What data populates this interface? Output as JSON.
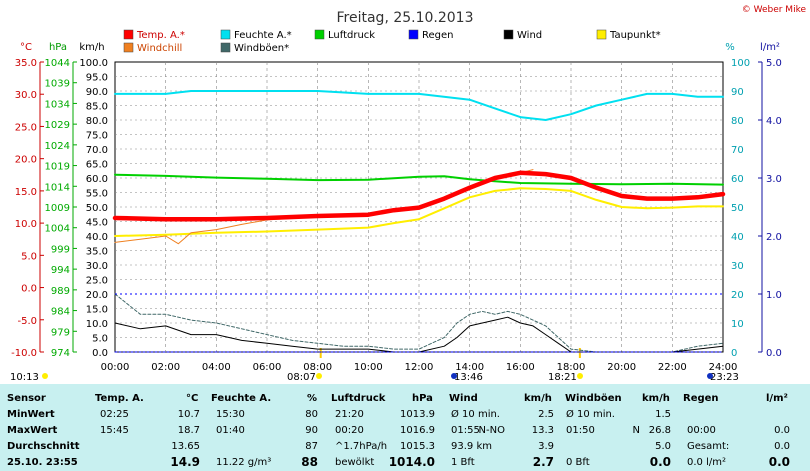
{
  "title": "Freitag, 25.10.2013",
  "credit": "© Weber Mike",
  "legend": [
    {
      "label": "Temp. A.*",
      "color": "#ff0000"
    },
    {
      "label": "Feuchte A.*",
      "color": "#00e0f0"
    },
    {
      "label": "Luftdruck",
      "color": "#00d000"
    },
    {
      "label": "Regen",
      "color": "#0000ff"
    },
    {
      "label": "Wind",
      "color": "#000000"
    },
    {
      "label": "Taupunkt*",
      "color": "#ffee00"
    },
    {
      "label": "Windchill",
      "color": "#f08020"
    },
    {
      "label": "Windböen*",
      "color": "#406868"
    }
  ],
  "axis_units": {
    "temp": "°C",
    "pressure": "hPa",
    "wind": "km/h",
    "humidity": "%",
    "rain": "l/m²"
  },
  "ticks": {
    "temp": [
      "35.0",
      "30.0",
      "25.0",
      "20.0",
      "15.0",
      "10.0",
      "5.0",
      "0.0",
      "-5.0",
      "-10.0"
    ],
    "pressure": [
      "1044",
      "1039",
      "1034",
      "1029",
      "1024",
      "1019",
      "1014",
      "1009",
      "1004",
      "999",
      "994",
      "989",
      "984",
      "979",
      "974"
    ],
    "wind": [
      "100.0",
      "95.0",
      "90.0",
      "85.0",
      "80.0",
      "75.0",
      "70.0",
      "65.0",
      "60.0",
      "55.0",
      "50.0",
      "45.0",
      "40.0",
      "35.0",
      "30.0",
      "25.0",
      "20.0",
      "15.0",
      "10.0",
      "5.0",
      "0.0"
    ],
    "humidity": [
      "100",
      "90",
      "80",
      "70",
      "60",
      "50",
      "40",
      "30",
      "20",
      "10",
      "0"
    ],
    "rain": [
      "5.0",
      "4.0",
      "3.0",
      "2.0",
      "1.0",
      "0.0"
    ],
    "time": [
      "00:00",
      "02:00",
      "04:00",
      "06:00",
      "08:00",
      "10:00",
      "12:00",
      "14:00",
      "16:00",
      "18:00",
      "20:00",
      "22:00",
      "24:00"
    ]
  },
  "events": [
    {
      "label": "10:13",
      "color": "#ffee00"
    },
    {
      "label": "08:07",
      "color": "#ffee00"
    },
    {
      "label": "13:46",
      "color": "#1030c0"
    },
    {
      "label": "18:21",
      "color": "#ffee00"
    },
    {
      "label": "23:23",
      "color": "#1030c0"
    }
  ],
  "chart_data": {
    "type": "line",
    "title": "Freitag, 25.10.2013",
    "x_unit": "hours",
    "xlim": [
      0,
      24
    ],
    "series": [
      {
        "name": "Temp. A.*",
        "axis": "temp",
        "range": [
          -10,
          35
        ],
        "color": "#ff0000",
        "x": [
          0,
          2,
          4,
          6,
          8,
          10,
          11,
          12,
          13,
          14,
          15,
          16,
          17,
          18,
          19,
          20,
          21,
          22,
          23,
          24
        ],
        "y": [
          10.8,
          10.6,
          10.6,
          10.8,
          11.1,
          11.3,
          12.0,
          12.4,
          13.8,
          15.5,
          17.0,
          17.8,
          17.6,
          17.0,
          15.5,
          14.2,
          13.8,
          13.8,
          14.0,
          14.5
        ]
      },
      {
        "name": "Feuchte A.*",
        "axis": "humidity",
        "range": [
          0,
          100
        ],
        "color": "#00e0f0",
        "x": [
          0,
          2,
          3,
          4,
          6,
          8,
          10,
          12,
          14,
          15,
          16,
          17,
          18,
          19,
          20,
          21,
          22,
          23,
          24
        ],
        "y": [
          89,
          89,
          90,
          90,
          90,
          90,
          89,
          89,
          87,
          84,
          81,
          80,
          82,
          85,
          87,
          89,
          89,
          88,
          88
        ]
      },
      {
        "name": "Luftdruck",
        "axis": "pressure",
        "range": [
          974,
          1044
        ],
        "color": "#00d000",
        "x": [
          0,
          2,
          4,
          6,
          8,
          10,
          12,
          13,
          14,
          15,
          16,
          18,
          20,
          22,
          24
        ],
        "y": [
          1016.8,
          1016.5,
          1016.1,
          1015.8,
          1015.5,
          1015.6,
          1016.3,
          1016.4,
          1015.7,
          1015.2,
          1014.8,
          1014.6,
          1014.5,
          1014.6,
          1014.4
        ]
      },
      {
        "name": "Regen",
        "axis": "rain",
        "range": [
          0,
          5
        ],
        "color": "#0000ff",
        "x": [
          0,
          24
        ],
        "y": [
          0,
          0
        ]
      },
      {
        "name": "Wind",
        "axis": "wind",
        "range": [
          0,
          100
        ],
        "color": "#000000",
        "x": [
          0,
          1,
          2,
          3,
          4,
          5,
          6,
          7,
          8,
          9,
          10,
          11,
          12,
          13,
          13.5,
          14,
          14.5,
          15,
          15.5,
          16,
          16.5,
          17,
          17.5,
          18,
          19,
          20,
          21,
          22,
          23,
          24
        ],
        "y": [
          10,
          8,
          9,
          6,
          6,
          4,
          3,
          2,
          1,
          1,
          1,
          0,
          0,
          2,
          5,
          9,
          10,
          11,
          12,
          10,
          9,
          6,
          3,
          0,
          0,
          0,
          0,
          0,
          1,
          2
        ]
      },
      {
        "name": "Taupunkt*",
        "axis": "temp",
        "range": [
          -10,
          35
        ],
        "color": "#ffee00",
        "x": [
          0,
          2,
          4,
          6,
          8,
          10,
          11,
          12,
          13,
          14,
          15,
          16,
          17,
          18,
          19,
          20,
          21,
          22,
          23,
          24
        ],
        "y": [
          8.0,
          8.2,
          8.5,
          8.7,
          9.0,
          9.3,
          10.0,
          10.6,
          12.3,
          14.0,
          15.0,
          15.4,
          15.3,
          15.0,
          13.6,
          12.5,
          12.3,
          12.4,
          12.6,
          12.6
        ]
      },
      {
        "name": "Windchill",
        "axis": "temp",
        "range": [
          -10,
          35
        ],
        "color": "#f08020",
        "x": [
          0,
          1,
          2,
          2.5,
          3,
          4,
          5,
          6,
          8,
          10,
          12,
          13,
          14,
          15,
          15.5,
          16,
          16.5
        ],
        "y": [
          7.0,
          7.5,
          8.0,
          6.8,
          8.5,
          9.0,
          9.8,
          10.5,
          11.0,
          11.3,
          12.3,
          13.6,
          15.2,
          16.8,
          17.5,
          17.8,
          18.3
        ]
      },
      {
        "name": "Windböen*",
        "axis": "wind",
        "range": [
          0,
          100
        ],
        "color": "#406868",
        "x": [
          0,
          1,
          2,
          3,
          4,
          5,
          6,
          7,
          8,
          9,
          10,
          11,
          12,
          13,
          13.5,
          14,
          14.5,
          15,
          15.5,
          16,
          16.5,
          17,
          17.5,
          18,
          19,
          20,
          21,
          22,
          23,
          24
        ],
        "y": [
          20,
          13,
          13,
          11,
          10,
          8,
          6,
          4,
          3,
          2,
          2,
          1,
          1,
          5,
          10,
          13,
          14,
          13,
          14,
          13,
          11,
          9,
          5,
          1,
          0,
          0,
          0,
          0,
          2,
          3
        ]
      }
    ]
  },
  "stats": {
    "headers": {
      "sensor": "Sensor",
      "temp": "Temp. A.",
      "temp_unit": "°C",
      "hum": "Feuchte A.",
      "hum_unit": "%",
      "press": "Luftdruck",
      "press_unit": "hPa",
      "wind": "Wind",
      "wind_unit": "km/h",
      "gust": "Windböen",
      "gust_unit": "km/h",
      "rain": "Regen",
      "rain_unit": "l/m²"
    },
    "rows": [
      {
        "label": "MinWert",
        "temp_time": "02:25",
        "temp_val": "10.7",
        "hum_time": "15:30",
        "hum_val": "80",
        "press_time": "21:20",
        "press_val": "1013.9",
        "wind_time": "Ø 10 min.",
        "wind_dir": "",
        "wind_val": "2.5",
        "gust_time": "Ø 10 min.",
        "gust_dir": "",
        "gust_val": "1.5",
        "rain_time": "",
        "rain_val": ""
      },
      {
        "label": "MaxWert",
        "temp_time": "15:45",
        "temp_val": "18.7",
        "hum_time": "01:40",
        "hum_val": "90",
        "press_time": "00:20",
        "press_val": "1016.9",
        "wind_time": "01:55",
        "wind_dir": "N-NO",
        "wind_val": "13.3",
        "gust_time": "01:50",
        "gust_dir": "N",
        "gust_val": "26.8",
        "rain_time": "00:00",
        "rain_val": "0.0"
      },
      {
        "label": "Durchschnitt",
        "temp_time": "",
        "temp_val": "13.65",
        "hum_time": "",
        "hum_val": "87",
        "press_time": "^1.7hPa/h",
        "press_val": "1015.3",
        "wind_time": "93.9 km",
        "wind_dir": "",
        "wind_val": "3.9",
        "gust_time": "",
        "gust_dir": "",
        "gust_val": "5.0",
        "rain_time": "Gesamt:",
        "rain_val": "0.0"
      },
      {
        "label": "25.10. 23:55",
        "temp_time": "",
        "temp_val": "14.9",
        "hum_time": "11.22 g/m³",
        "hum_val": "88",
        "press_time": "bewölkt",
        "press_val": "1014.0",
        "wind_time": "1 Bft",
        "wind_dir": "",
        "wind_val": "2.7",
        "gust_time": "0 Bft",
        "gust_dir": "",
        "gust_val": "0.0",
        "rain_time": "0.0 l/m²",
        "rain_val": "0.0"
      }
    ]
  }
}
